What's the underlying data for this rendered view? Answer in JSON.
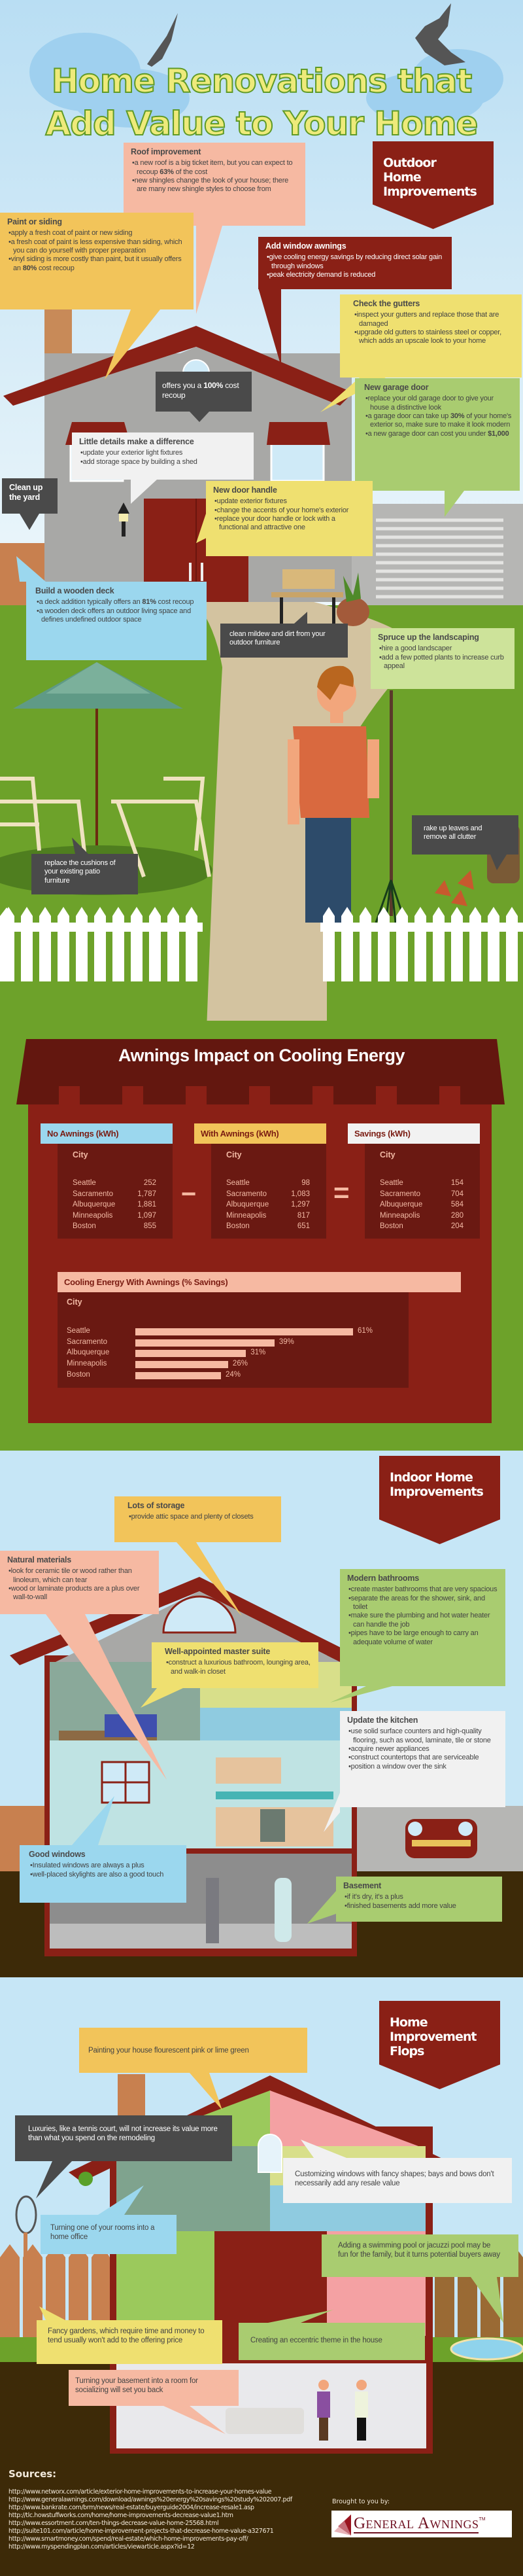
{
  "title": {
    "line1": "Home Renovations that",
    "line2": "Add Value to Your Home"
  },
  "outdoor": {
    "label": "Outdoor Home Improvements",
    "roof": {
      "heading": "Roof improvement",
      "items": [
        [
          "a new roof is a big ticket item, but you can expect to recoup ",
          {
            "b": "63%"
          },
          " of the cost"
        ],
        "new shingles change the look of your house; there are many new shingle styles to choose from"
      ]
    },
    "paint": {
      "heading": "Paint or siding",
      "items": [
        "apply a fresh coat of paint or new siding",
        "a fresh coat of paint is less expensive than siding, which you can do yourself with proper preparation",
        [
          "vinyl siding is more costly than paint, but it usually offers an ",
          {
            "b": "80%"
          },
          " cost recoup"
        ]
      ]
    },
    "awnings": {
      "heading": "Add window awnings",
      "items": [
        "give cooling energy savings by reducing direct solar gain through windows",
        "peak electricity demand is reduced"
      ]
    },
    "gutters": {
      "heading": "Check the gutters",
      "items": [
        "inspect your gutters and replace those that are damaged",
        "upgrade old gutters to stainless steel or copper, which adds an upscale look to your home"
      ]
    },
    "recoup": {
      "text": [
        "offers you a ",
        {
          "b": "100%"
        },
        " cost recoup"
      ]
    },
    "details": {
      "heading": "Little details make a difference",
      "items": [
        "update your exterior light fixtures",
        "add storage space by building a shed"
      ]
    },
    "garage": {
      "heading": "New garage door",
      "items": [
        "replace your old garage door to give your house a distinctive look",
        [
          "a garage door can take up ",
          {
            "b": "30%"
          },
          " of your home's exterior so, make sure to make it look modern"
        ],
        [
          "a new garage door can cost you under ",
          {
            "b": "$1,000"
          }
        ]
      ]
    },
    "yard": {
      "heading": "Clean up the yard"
    },
    "door": {
      "heading": "New door handle",
      "items": [
        "update  exterior fixtures",
        "change the accents of your home's exterior",
        "replace your door handle or lock with a functional and attractive one"
      ]
    },
    "deck": {
      "heading": "Build a wooden deck",
      "items": [
        [
          "a deck addition typically offers an ",
          {
            "b": "81%"
          },
          " cost recoup"
        ],
        "a wooden deck offers an outdoor living space and defines undefined outdoor space"
      ]
    },
    "mildew": {
      "text": [
        "clean mildew and dirt from your outdoor furniture"
      ]
    },
    "landscaping": {
      "heading": "Spruce up the landscaping",
      "items": [
        "hire a good landscaper",
        "add a few potted plants to increase curb appeal"
      ]
    },
    "cushions": {
      "text": [
        "replace the cushions of your existing patio furniture"
      ]
    },
    "rake": {
      "text": [
        "rake up leaves and remove all clutter"
      ]
    }
  },
  "awnings_section": {
    "title": "Awnings Impact on Cooling Energy",
    "city_label": "City",
    "minus": "−",
    "equals": "=",
    "tables": [
      {
        "header": "No Awnings (kWh)",
        "color": "#9bd7ee",
        "rows": [
          [
            "Seattle",
            "252"
          ],
          [
            "Sacramento",
            "1,787"
          ],
          [
            "Albuquerque",
            "1,881"
          ],
          [
            "Minneapolis",
            "1,097"
          ],
          [
            "Boston",
            "855"
          ]
        ]
      },
      {
        "header": "With Awnings (kWh)",
        "color": "#f2c45a",
        "rows": [
          [
            "Seattle",
            "98"
          ],
          [
            "Sacramento",
            "1,083"
          ],
          [
            "Albuquerque",
            "1,297"
          ],
          [
            "Minneapolis",
            "817"
          ],
          [
            "Boston",
            "651"
          ]
        ]
      },
      {
        "header": "Savings (kWh)",
        "color": "#f2f2f2",
        "rows": [
          [
            "Seattle",
            "154"
          ],
          [
            "Sacramento",
            "704"
          ],
          [
            "Albuquerque",
            "584"
          ],
          [
            "Minneapolis",
            "280"
          ],
          [
            "Boston",
            "204"
          ]
        ]
      }
    ]
  },
  "chart_data": {
    "type": "bar",
    "orientation": "horizontal",
    "title": "Cooling Energy With Awnings (% Savings)",
    "ylabel": "City",
    "xlabel": "",
    "categories": [
      "Seattle",
      "Sacramento",
      "Albuquerque",
      "Minneapolis",
      "Boston"
    ],
    "values": [
      61,
      39,
      31,
      26,
      24
    ],
    "labels": [
      "61%",
      "39%",
      "31%",
      "26%",
      "24%"
    ],
    "xlim": [
      0,
      61
    ],
    "grid": false,
    "bar_color": "#f6b9a2"
  },
  "indoor": {
    "label": "Indoor Home Improvements",
    "storage": {
      "heading": "Lots of storage",
      "items": [
        "provide attic space and plenty of closets"
      ]
    },
    "natural": {
      "heading": "Natural materials",
      "items": [
        "look for ceramic tile or wood rather than linoleum, which can tear",
        "wood or laminate products are a plus over wall-to-wall"
      ]
    },
    "bathrooms": {
      "heading": "Modern bathrooms",
      "items": [
        "create master bathrooms that are very spacious",
        "separate the areas for the shower, sink, and toilet",
        "make sure the plumbing and hot water heater can handle the job",
        "pipes have to be large enough to carry an adequate volume of water"
      ]
    },
    "suite": {
      "heading": "Well-appointed master suite",
      "items": [
        "construct a luxurious bathroom, lounging area, and walk-in closet"
      ]
    },
    "kitchen": {
      "heading": "Update the kitchen",
      "items": [
        "use solid surface counters and high-quality flooring, such as wood, laminate, tile or stone",
        "acquire newer appliances",
        "construct countertops that are serviceable",
        "position a window over the sink"
      ]
    },
    "windows": {
      "heading": "Good windows",
      "items": [
        "Insulated windows are always a plus",
        "well-placed skylights are also a good touch"
      ]
    },
    "basement": {
      "heading": "Basement",
      "items": [
        "if it's dry, it's a plus",
        "finished basements add more value"
      ]
    }
  },
  "flops": {
    "label": "Home Improvement Flops",
    "painting": {
      "text": [
        "Painting your house flourescent pink or lime green"
      ]
    },
    "luxuries": {
      "text": [
        "Luxuries, like a tennis court, will not increase its value more than what you spend on the remodeling"
      ]
    },
    "customizing": {
      "text": [
        "Customizing windows with fancy shapes; bays and bows don't necessarily add any resale value"
      ]
    },
    "office": {
      "text": [
        "Turning one of your rooms into a home office"
      ]
    },
    "pool": {
      "text": [
        "Adding a swimming pool or jacuzzi pool may be fun for the family, but it turns potential buyers away"
      ]
    },
    "gardens": {
      "text": [
        "Fancy gardens, which require time and money to tend usually won't add to the offering price"
      ]
    },
    "eccentric": {
      "text": [
        "Creating an eccentric theme in the house"
      ]
    },
    "socializing": {
      "text": [
        "Turning your basement into a room for socializing will set you back"
      ]
    }
  },
  "footer": {
    "sources_label": "Sources:",
    "sources": [
      "http://www.networx.com/article/exterior-home-improvements-to-increase-your-homes-value",
      "http://www.generalawnings.com/download/awnings%20energy%20savings%20study%202007.pdf",
      "http://www.bankrate.com/brm/news/real-estate/buyerguide2004/increase-resale1.asp",
      "http://tlc.howstuffworks.com/home/home-improvements-decrease-value1.htm",
      "http://www.essortment.com/ten-things-decrease-value-home-25568.html",
      "http://suite101.com/article/home-improvement-projects-that-decrease-home-value-a327671",
      "http://www.smartmoney.com/spend/real-estate/which-home-improvements-pay-off/",
      "http://www.myspendingplan.com/articles/viewarticle.aspx?id=12"
    ],
    "brought_by": "Brought to you by:",
    "logo_text": "General Awnings",
    "logo_tm": "TM"
  },
  "colors": {
    "brand_red": "#8a2016",
    "sky": "#c6e6f6",
    "grass": "#6da22a",
    "ground": "#3d2a08"
  }
}
